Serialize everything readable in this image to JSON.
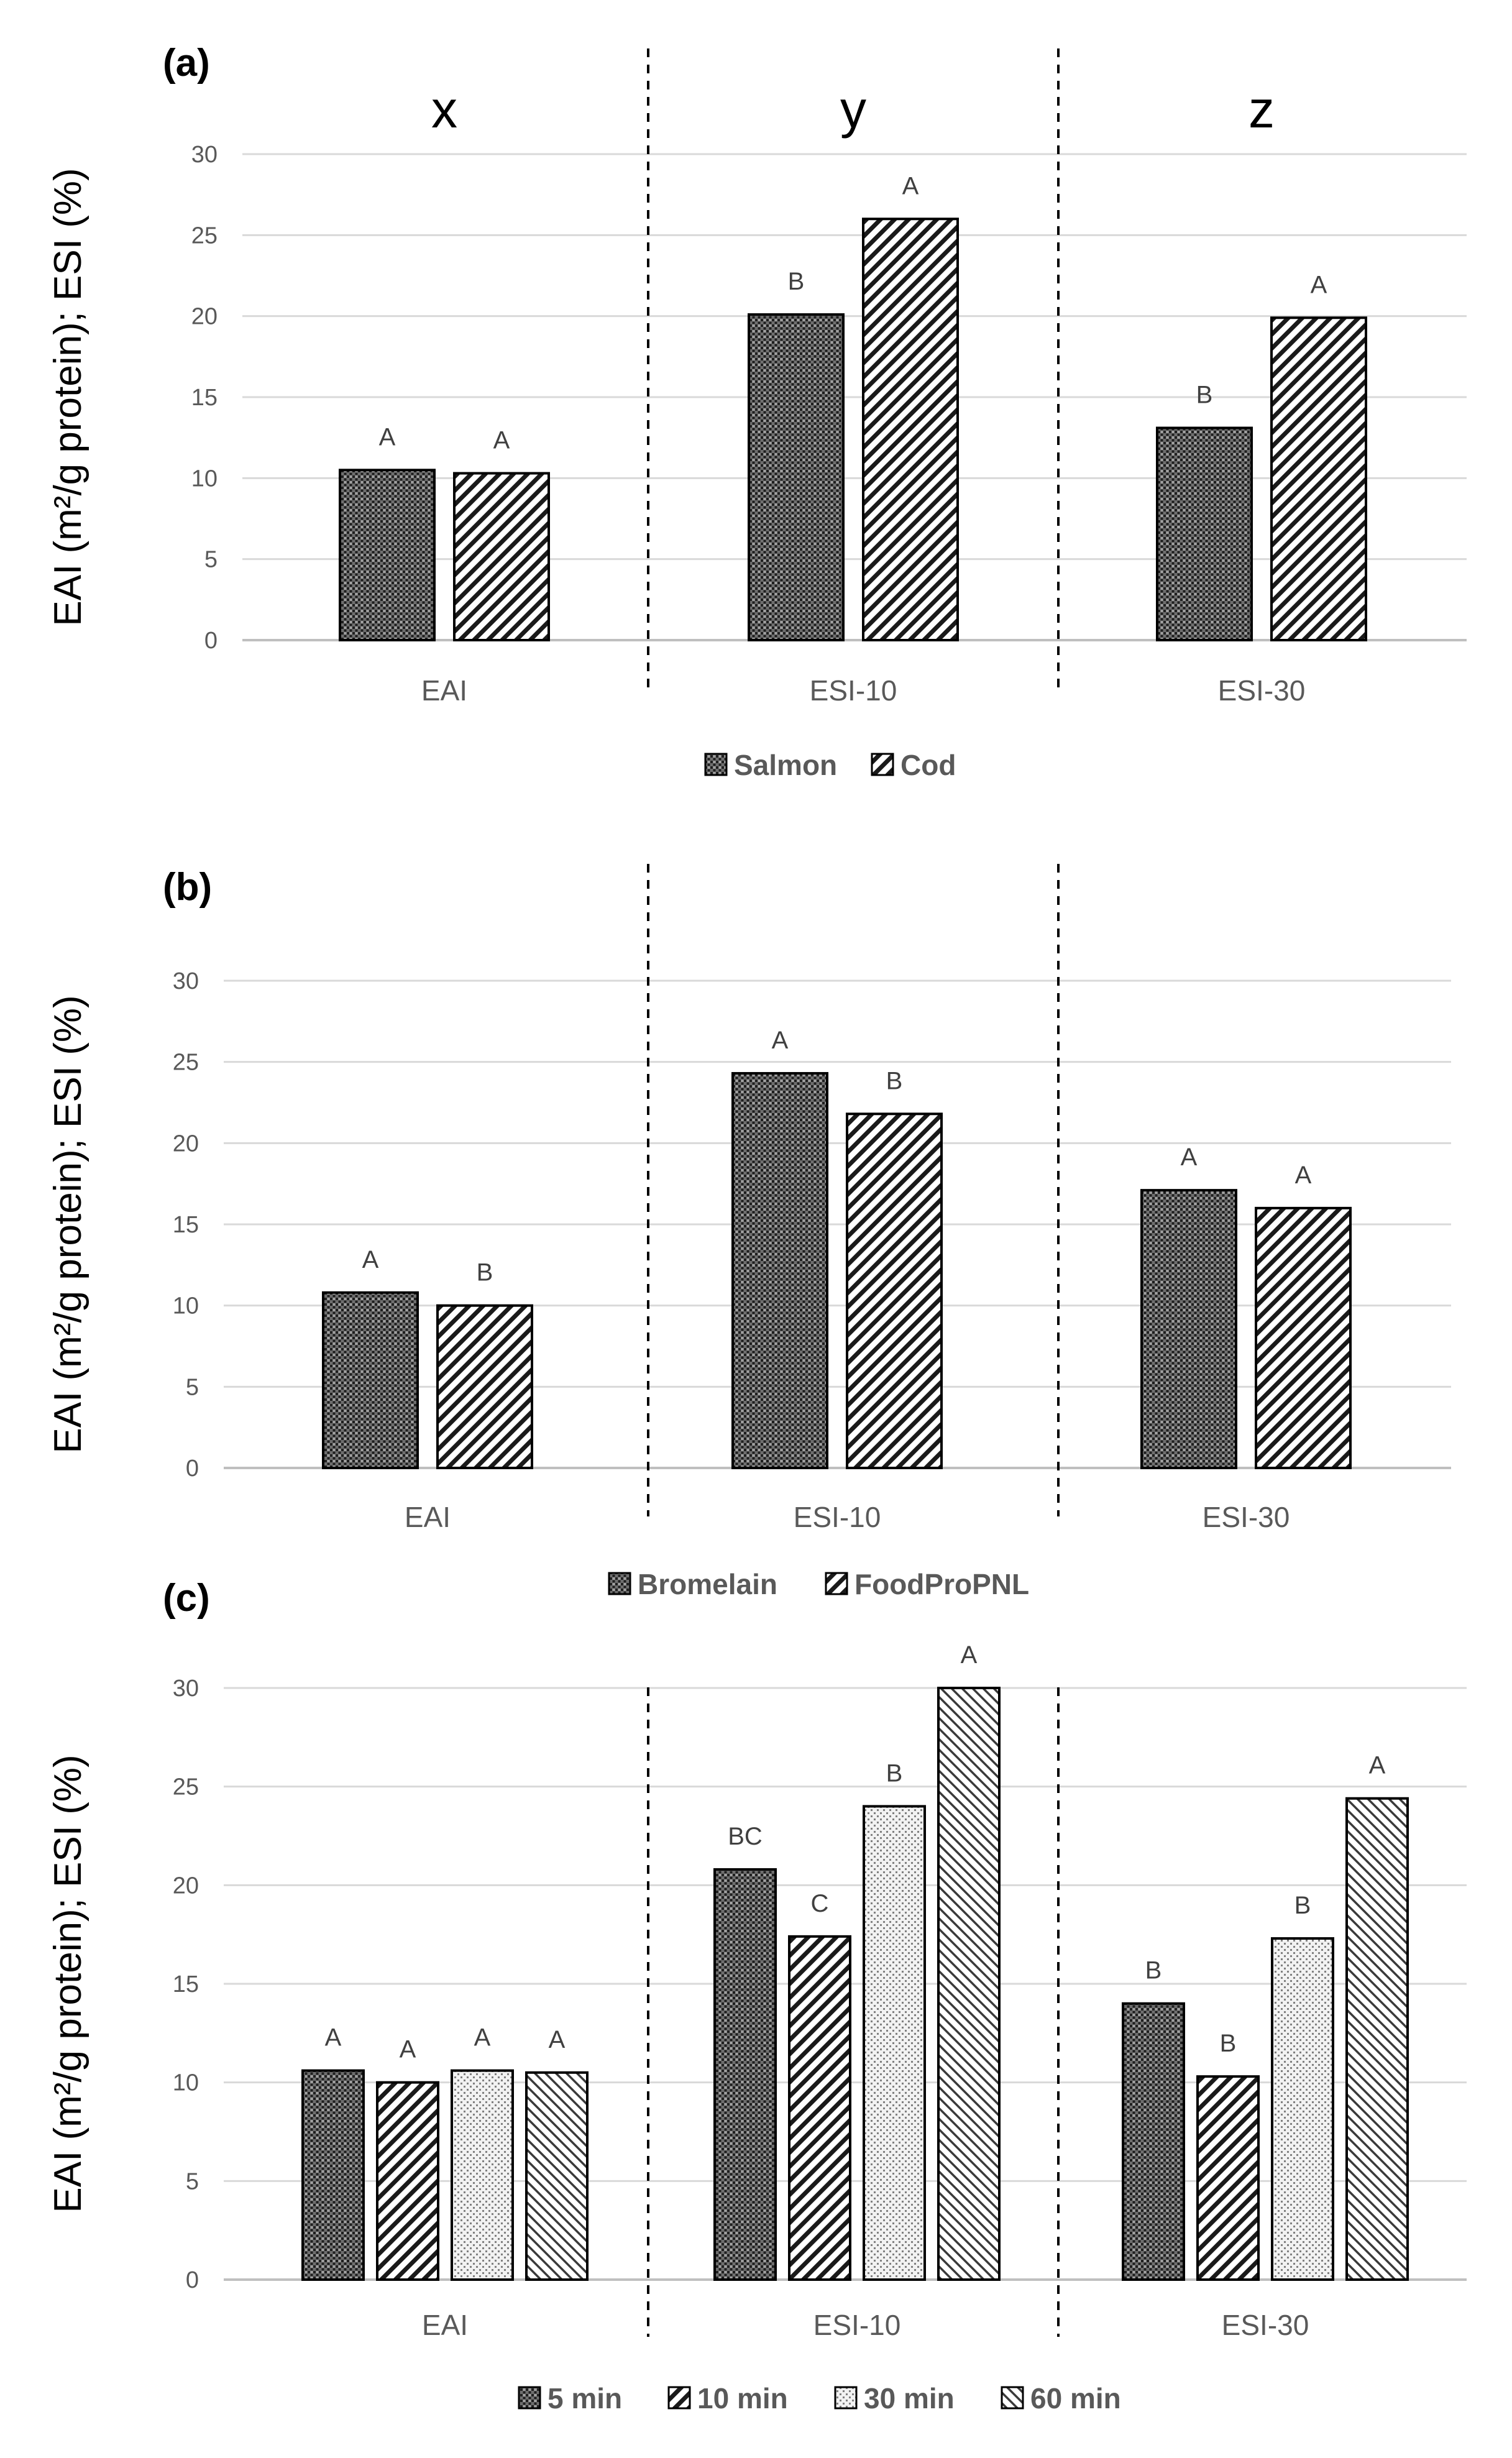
{
  "chart_data": [
    {
      "type": "bar",
      "panel_label": "(a)",
      "section_labels": [
        "x",
        "y",
        "z"
      ],
      "categories": [
        "EAI",
        "ESI-10",
        "ESI-30"
      ],
      "ylabel": "EAI (m²/g protein); ESI (%)",
      "ylim": [
        0,
        30
      ],
      "yticks": [
        0,
        5,
        10,
        15,
        20,
        25,
        30
      ],
      "legend_position": "bottom",
      "grid": true,
      "series": [
        {
          "name": "Salmon",
          "pattern": "pat-dots",
          "values": [
            10.5,
            20.1,
            13.1
          ],
          "labels": [
            "A",
            "B",
            "B"
          ]
        },
        {
          "name": "Cod",
          "pattern": "pat-diag",
          "values": [
            10.3,
            26.0,
            19.9
          ],
          "labels": [
            "A",
            "A",
            "A"
          ]
        }
      ]
    },
    {
      "type": "bar",
      "panel_label": "(b)",
      "categories": [
        "EAI",
        "ESI-10",
        "ESI-30"
      ],
      "ylabel": "EAI (m²/g protein); ESI (%)",
      "ylim": [
        0,
        30
      ],
      "yticks": [
        0,
        5,
        10,
        15,
        20,
        25,
        30
      ],
      "legend_position": "bottom",
      "grid": true,
      "series": [
        {
          "name": "Bromelain",
          "pattern": "pat-dots",
          "values": [
            10.8,
            24.3,
            17.1
          ],
          "labels": [
            "A",
            "A",
            "A"
          ]
        },
        {
          "name": "FoodProPNL",
          "pattern": "pat-diag",
          "values": [
            10.0,
            21.8,
            16.0
          ],
          "labels": [
            "B",
            "B",
            "A"
          ]
        }
      ]
    },
    {
      "type": "bar",
      "panel_label": "(c)",
      "categories": [
        "EAI",
        "ESI-10",
        "ESI-30"
      ],
      "ylabel": "EAI (m²/g protein); ESI (%)",
      "ylim": [
        0,
        30
      ],
      "yticks": [
        0,
        5,
        10,
        15,
        20,
        25,
        30
      ],
      "legend_position": "bottom",
      "grid": true,
      "series": [
        {
          "name": "5 min",
          "pattern": "pat-dots",
          "values": [
            10.6,
            20.8,
            14.0
          ],
          "labels": [
            "A",
            "BC",
            "B"
          ]
        },
        {
          "name": "10 min",
          "pattern": "pat-diag",
          "values": [
            10.0,
            17.4,
            10.3
          ],
          "labels": [
            "A",
            "C",
            "B"
          ]
        },
        {
          "name": "30 min",
          "pattern": "pat-sparse",
          "values": [
            10.6,
            24.0,
            17.3
          ],
          "labels": [
            "A",
            "B",
            "B"
          ]
        },
        {
          "name": "60 min",
          "pattern": "pat-diag-light",
          "values": [
            10.5,
            30.0,
            24.4
          ],
          "labels": [
            "A",
            "A",
            "A"
          ]
        }
      ]
    }
  ]
}
